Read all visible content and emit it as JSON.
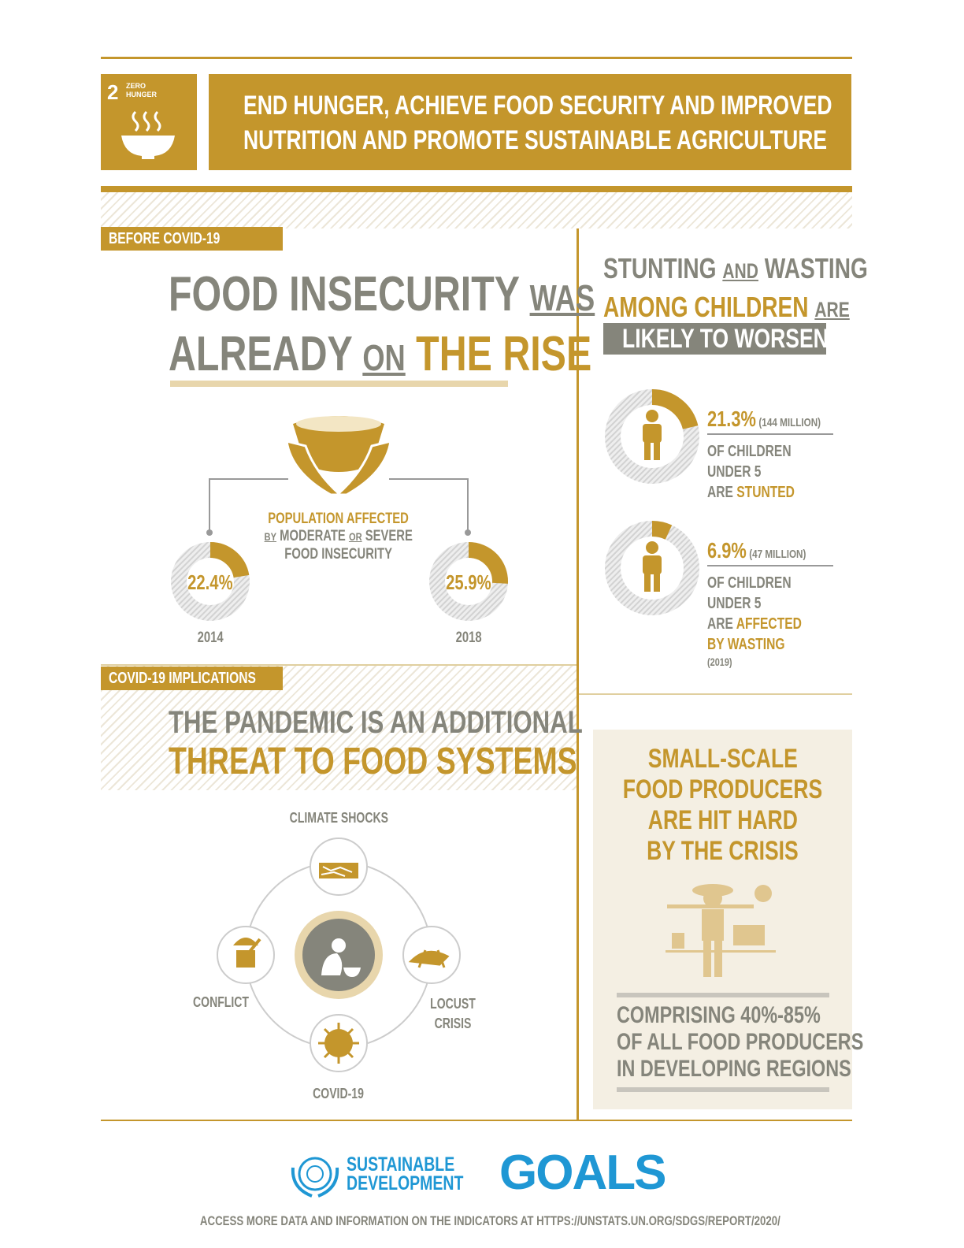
{
  "header": {
    "goal_number": "2",
    "goal_name_line1": "ZERO",
    "goal_name_line2": "HUNGER",
    "title_line1": "END HUNGER, ACHIEVE FOOD SECURITY AND IMPROVED",
    "title_line2": "NUTRITION AND PROMOTE SUSTAINABLE AGRICULTURE",
    "icon": "soup-bowl-icon"
  },
  "before": {
    "tag": "BEFORE COVID-19",
    "h1a": "FOOD INSECURITY",
    "h1b": "WAS",
    "h2a": "ALREADY",
    "h2b": "ON",
    "h2c": "THE RISE",
    "pop_line1": "POPULATION AFFECTED",
    "pop_by": "BY",
    "pop_mid": "MODERATE",
    "pop_or": "OR",
    "pop_end": "SEVERE",
    "pop_line3": "FOOD INSECURITY",
    "donuts": [
      {
        "value": 22.4,
        "label": "22.4%",
        "year": "2014"
      },
      {
        "value": 25.9,
        "label": "25.9%",
        "year": "2018"
      }
    ]
  },
  "stunting": {
    "t1a": "STUNTING",
    "t1b": "AND",
    "t1c": "WASTING",
    "t2a": "AMONG CHILDREN",
    "t2b": "ARE",
    "t3": "LIKELY TO WORSEN",
    "items": [
      {
        "value": 21.3,
        "pct": "21.3%",
        "count": "(144 MILLION)",
        "l1": "OF CHILDREN",
        "l2": "UNDER 5",
        "l3a": "ARE ",
        "l3b": "STUNTED",
        "l4": "",
        "note": ""
      },
      {
        "value": 6.9,
        "pct": "6.9%",
        "count": "(47 MILLION)",
        "l1": "OF CHILDREN",
        "l2": "UNDER 5",
        "l3a": "ARE ",
        "l3b": "AFFECTED",
        "l4": "BY WASTING",
        "note": "(2019)"
      }
    ]
  },
  "covid": {
    "tag": "COVID-19 IMPLICATIONS",
    "h1": "THE PANDEMIC IS AN ADDITIONAL",
    "h2": "THREAT TO FOOD SYSTEMS",
    "threats": {
      "top": "CLIMATE SHOCKS",
      "left": "CONFLICT",
      "right_1": "LOCUST",
      "right_2": "CRISIS",
      "bottom": "COVID-19"
    }
  },
  "producers": {
    "l1": "SMALL-SCALE",
    "l2": "FOOD PRODUCERS",
    "l3": "ARE HIT HARD",
    "l4": "BY THE CRISIS",
    "c1": "COMPRISING 40%-85%",
    "c2": "OF ALL FOOD PRODUCERS",
    "c3": "IN DEVELOPING REGIONS"
  },
  "footer": {
    "logo_1": "SUSTAINABLE",
    "logo_2": "DEVELOPMENT",
    "logo_3": "GOALS",
    "link_text": "ACCESS MORE DATA AND INFORMATION ON THE INDICATORS AT HTTPS://UNSTATS.UN.ORG/SDGS/REPORT/2020/"
  },
  "colors": {
    "gold": "#c4962c",
    "gray": "#85857b",
    "beige": "#f4efe3",
    "sdg_blue": "#1f97d4"
  }
}
